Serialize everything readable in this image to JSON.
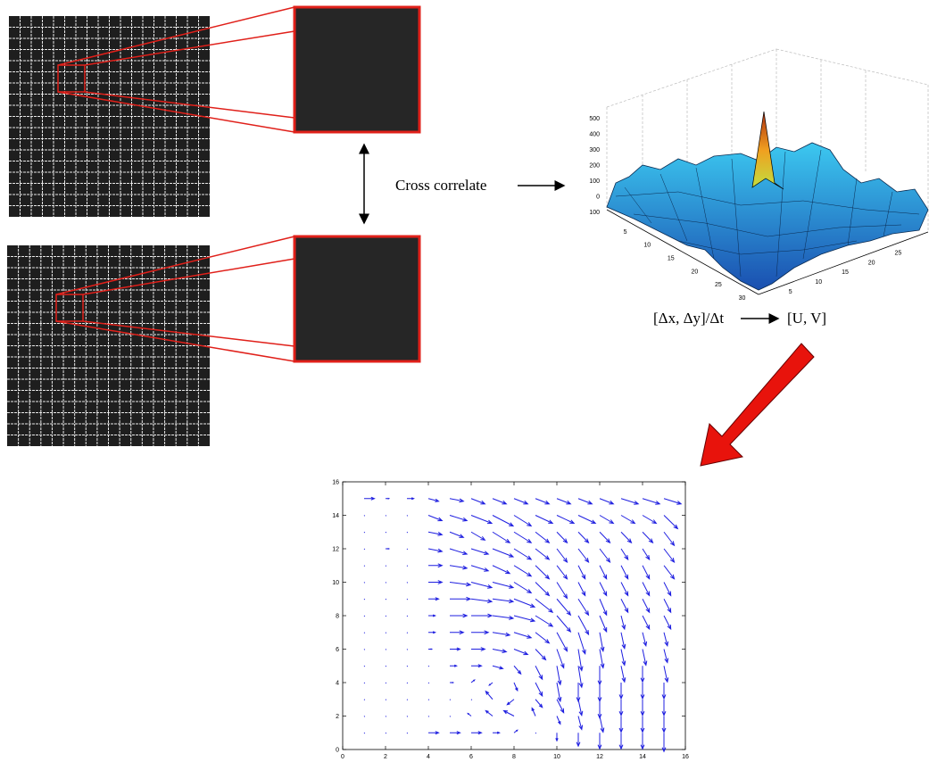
{
  "labels": {
    "cross": "Cross correlate",
    "displacement": "[Δx, Δy]/Δt",
    "velocity": "[U, V]"
  },
  "surface": {
    "zticks": [
      500,
      400,
      300,
      200,
      100,
      0,
      {
        "value": -100,
        "label": "100"
      }
    ],
    "xticks": [
      5,
      10,
      15,
      20,
      25,
      30
    ],
    "yticks": [
      5,
      10,
      15,
      20,
      25
    ]
  },
  "quiver": {
    "xlim": [
      0,
      16
    ],
    "ylim": [
      0,
      16
    ],
    "xticks": [
      0,
      2,
      4,
      6,
      8,
      10,
      12,
      14,
      16
    ],
    "yticks": [
      0,
      2,
      4,
      6,
      8,
      10,
      12,
      14,
      16
    ],
    "color": "#1f1fe0",
    "x": [
      1,
      2,
      3,
      4,
      5,
      6,
      7,
      8,
      9,
      10,
      11,
      12,
      13,
      14,
      15
    ],
    "y": [
      15,
      14,
      13,
      12,
      11,
      10,
      9,
      8,
      7,
      6,
      5,
      4,
      3,
      2,
      1
    ],
    "u": [
      [
        0.3,
        0.1,
        0.2,
        0.3,
        0.4,
        0.4,
        0.4,
        0.4,
        0.4,
        0.4,
        0.4,
        0.4,
        0.5,
        0.5,
        0.5
      ],
      [
        0,
        0,
        0,
        0.4,
        0.5,
        0.6,
        0.6,
        0.5,
        0.5,
        0.5,
        0.5,
        0.4,
        0.4,
        0.4,
        0.4
      ],
      [
        0,
        0,
        0,
        0.4,
        0.4,
        0.4,
        0.5,
        0.5,
        0.4,
        0.3,
        0.3,
        0.3,
        0.3,
        0.3,
        0.3
      ],
      [
        0,
        0.1,
        0,
        0.4,
        0.5,
        0.5,
        0.6,
        0.5,
        0.4,
        0.3,
        0.3,
        0.3,
        0.2,
        0.2,
        0.3
      ],
      [
        0,
        0,
        0,
        0.4,
        0.5,
        0.5,
        0.5,
        0.5,
        0.4,
        0.3,
        0.2,
        0.2,
        0.2,
        0.2,
        0.3
      ],
      [
        0,
        0,
        0,
        0.4,
        0.6,
        0.6,
        0.6,
        0.5,
        0.4,
        0.3,
        0.2,
        0.2,
        0.2,
        0.2,
        0.2
      ],
      [
        0,
        0,
        0,
        0.3,
        0.6,
        0.6,
        0.6,
        0.6,
        0.5,
        0.4,
        0.3,
        0.2,
        0.2,
        0.2,
        0.2
      ],
      [
        0,
        0,
        0,
        0.2,
        0.5,
        0.6,
        0.6,
        0.6,
        0.5,
        0.4,
        0.3,
        0.2,
        0.1,
        0.2,
        0.2
      ],
      [
        0,
        0,
        0,
        0.2,
        0.4,
        0.5,
        0.5,
        0.5,
        0.4,
        0.3,
        0.2,
        0.1,
        0.1,
        0.1,
        0.1
      ],
      [
        0,
        0,
        0,
        0.1,
        0.3,
        0.4,
        0.4,
        0.4,
        0.3,
        0.2,
        0.1,
        0.1,
        0.1,
        0.1,
        0.1
      ],
      [
        0,
        0,
        0,
        0,
        0.2,
        0.3,
        0.3,
        0.2,
        0.2,
        0.1,
        0.1,
        0,
        0.1,
        0,
        0.1
      ],
      [
        0,
        0,
        0,
        0,
        0.1,
        0.1,
        -0.1,
        0.1,
        0.2,
        0.1,
        0,
        0,
        0,
        0,
        0
      ],
      [
        0,
        0,
        0,
        0,
        0,
        0,
        -0.2,
        -0.2,
        0.2,
        0.2,
        0.1,
        0,
        0,
        0,
        0
      ],
      [
        0,
        0,
        0,
        0,
        0,
        -0.1,
        -0.2,
        -0.3,
        -0.1,
        0.1,
        0.1,
        0.1,
        0,
        0,
        0
      ],
      [
        0,
        0,
        0,
        0.3,
        0.3,
        0.3,
        0.2,
        0.1,
        0,
        0,
        0,
        0,
        0,
        0,
        0
      ]
    ],
    "v": [
      [
        0,
        0,
        0,
        -0.1,
        -0.1,
        -0.2,
        -0.2,
        -0.2,
        -0.2,
        -0.2,
        -0.2,
        -0.2,
        -0.2,
        -0.2,
        -0.2
      ],
      [
        0.1,
        0,
        0,
        -0.2,
        -0.2,
        -0.3,
        -0.4,
        -0.4,
        -0.3,
        -0.3,
        -0.3,
        -0.3,
        -0.3,
        -0.3,
        -0.5
      ],
      [
        0.1,
        0,
        0,
        -0.1,
        -0.2,
        -0.3,
        -0.4,
        -0.4,
        -0.4,
        -0.4,
        -0.4,
        -0.4,
        -0.4,
        -0.4,
        -0.5
      ],
      [
        0,
        0,
        0,
        -0.1,
        -0.2,
        -0.2,
        -0.3,
        -0.4,
        -0.4,
        -0.5,
        -0.5,
        -0.5,
        -0.4,
        -0.4,
        -0.5
      ],
      [
        0,
        0,
        0,
        0,
        -0.1,
        -0.2,
        -0.3,
        -0.4,
        -0.5,
        -0.5,
        -0.5,
        -0.5,
        -0.5,
        -0.5,
        -0.5
      ],
      [
        0,
        0,
        0,
        0,
        -0.1,
        -0.2,
        -0.2,
        -0.4,
        -0.5,
        -0.6,
        -0.5,
        -0.5,
        -0.5,
        -0.5,
        -0.5
      ],
      [
        0,
        0,
        0,
        0,
        0,
        -0.1,
        -0.1,
        -0.3,
        -0.5,
        -0.6,
        -0.6,
        -0.6,
        -0.5,
        -0.5,
        -0.5
      ],
      [
        0,
        0,
        0,
        0,
        0,
        0,
        -0.1,
        -0.2,
        -0.4,
        -0.6,
        -0.7,
        -0.6,
        -0.5,
        -0.5,
        -0.5
      ],
      [
        0,
        0,
        0,
        0,
        0,
        0,
        -0.1,
        -0.2,
        -0.4,
        -0.7,
        -0.8,
        -0.7,
        -0.6,
        -0.5,
        -0.5
      ],
      [
        0,
        0,
        0,
        0,
        0,
        0,
        -0.1,
        -0.2,
        -0.4,
        -0.7,
        -0.8,
        -0.7,
        -0.6,
        -0.6,
        -0.5
      ],
      [
        0,
        0,
        0,
        0,
        0,
        0,
        -0.1,
        -0.3,
        -0.5,
        -0.7,
        -0.8,
        -0.7,
        -0.6,
        -0.6,
        -0.6
      ],
      [
        0,
        0,
        0,
        0,
        0,
        0.1,
        -0.1,
        -0.3,
        -0.5,
        -0.7,
        -0.7,
        -0.7,
        -0.6,
        -0.6,
        -0.6
      ],
      [
        0,
        0,
        0,
        0,
        0,
        0,
        0.3,
        -0.2,
        -0.3,
        -0.5,
        -0.6,
        -0.7,
        -0.6,
        -0.6,
        -0.6
      ],
      [
        0,
        0,
        0,
        0,
        0,
        0.1,
        0.2,
        0.2,
        0.3,
        -0.3,
        -0.5,
        -0.6,
        -0.6,
        -0.6,
        -0.6
      ],
      [
        0,
        0,
        0,
        0,
        0,
        0,
        0,
        0.1,
        0,
        -0.3,
        -0.5,
        -0.6,
        -0.6,
        -0.6,
        -0.7
      ]
    ]
  }
}
